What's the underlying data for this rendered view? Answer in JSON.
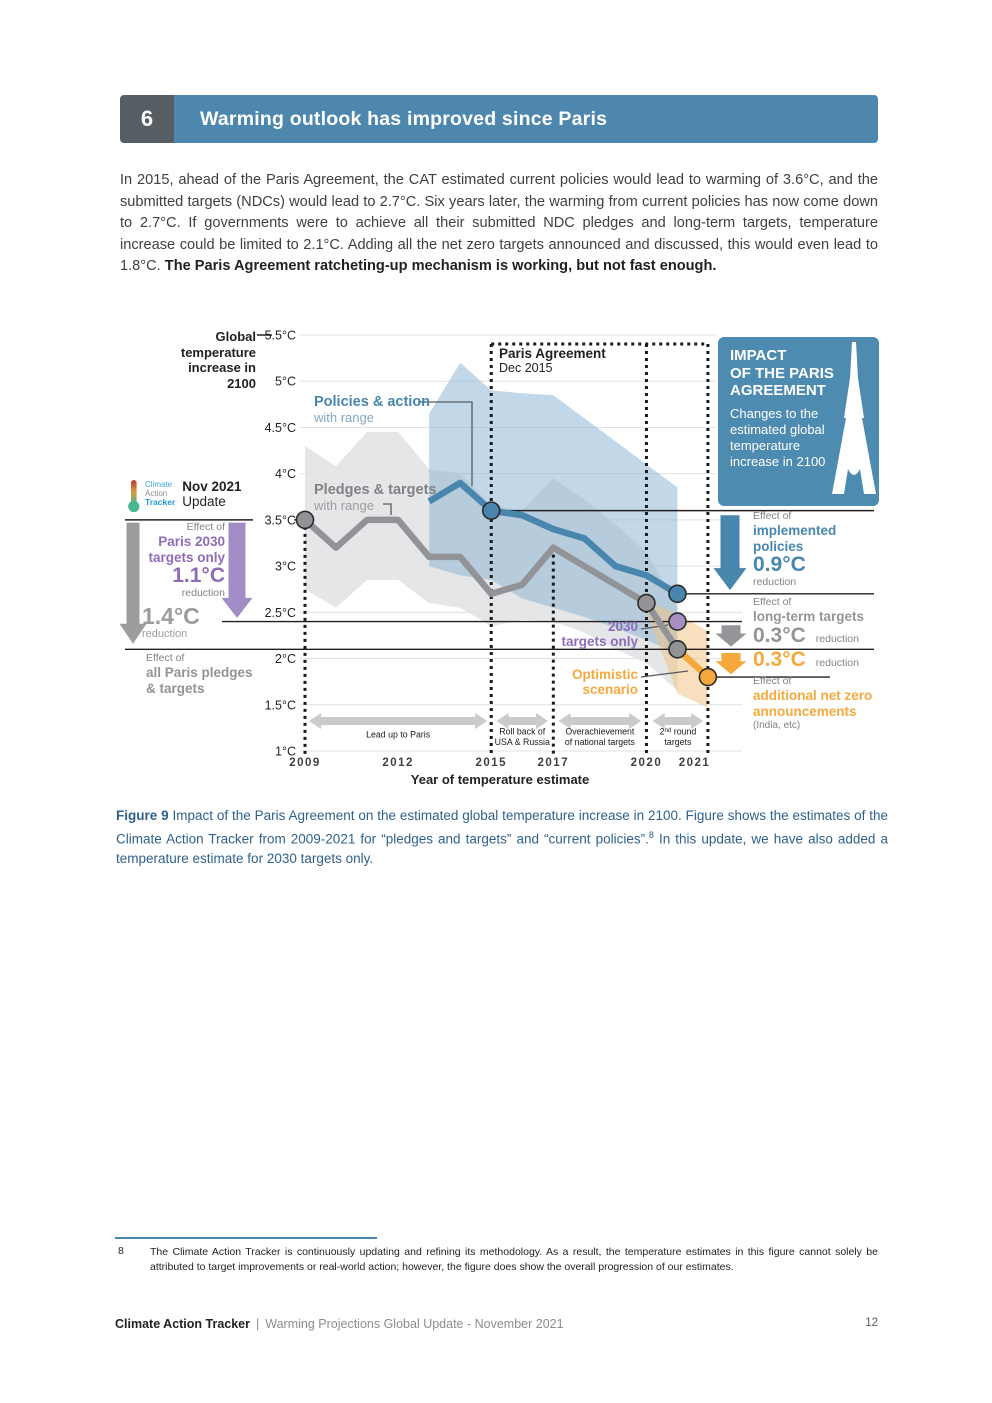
{
  "colors": {
    "banner_blue": "#4e87ae",
    "banner_dark": "#565d63",
    "policies_blue": "#4886ae",
    "pledges_gray": "#919396",
    "purple": "#8d6cb8",
    "orange": "#f5a93d",
    "caption_blue": "#2f618c"
  },
  "header": {
    "number": "6",
    "title": "Warming outlook has improved since Paris"
  },
  "intro": {
    "text": "In 2015, ahead of the Paris Agreement, the CAT estimated current policies would lead to warming of 3.6°C, and the submitted targets (NDCs) would lead to 2.7°C. Six years later, the warming from current policies has now come down to 2.7°C. If governments were to achieve all their submitted NDC pledges and long-term targets, temperature increase could be limited to 2.1°C. Adding all the net zero targets announced and discussed, this would even lead to 1.8°C. ",
    "bold_text": "The Paris Agreement ratcheting-up mechanism is working, but not fast enough."
  },
  "chart": {
    "y_axis_title": "Global\ntemperature\nincrease in\n2100",
    "legend": {
      "policies": {
        "title": "Policies & action",
        "subtitle": "with range"
      },
      "pledges": {
        "title": "Pledges & targets",
        "subtitle": "with range"
      }
    },
    "paris_event": {
      "title": "Paris Agreement",
      "subtitle": "Dec 2015"
    },
    "update_badge": {
      "logo_lines": [
        "Climate",
        "Action",
        "Tracker"
      ],
      "date": "Nov 2021",
      "label": "Update"
    },
    "impact_box": {
      "title": "IMPACT\nOF THE PARIS\nAGREEMENT",
      "body": "Changes to the estimated global temperature increase in 2100"
    },
    "annotations": {
      "paris2030": {
        "prefix": "Effect of",
        "line1": "Paris 2030",
        "line2": "targets only",
        "value": "1.1°C",
        "suffix": "reduction"
      },
      "all_pledges": {
        "value": "1.4°C",
        "value_suffix": "reduction",
        "prefix": "Effect of",
        "line1": "all Paris pledges",
        "line2": "& targets"
      },
      "implemented": {
        "prefix": "Effect of",
        "line1": "implemented",
        "line2": "policies",
        "value": "0.9°C",
        "suffix": "reduction"
      },
      "longterm": {
        "prefix": "Effect of",
        "line1": "long-term targets",
        "value": "0.3°C",
        "suffix": "reduction"
      },
      "netzero": {
        "value": "0.3°C",
        "value_suffix": "reduction",
        "prefix": "Effect of",
        "line1": "additional net zero",
        "line2": "announcements",
        "line3": "(India, etc)"
      },
      "targets2030_label": {
        "line1": "2030",
        "line2": "targets only"
      },
      "optimistic_label": {
        "line1": "Optimistic",
        "line2": "scenario"
      }
    }
  },
  "chart_data": {
    "type": "line",
    "title": "Impact of the Paris Agreement on the estimated global temperature increase in 2100",
    "xlabel": "Year of temperature estimate",
    "ylabel": "Global temperature increase in 2100 (°C)",
    "xlim": [
      2009,
      2022
    ],
    "ylim": [
      1,
      5.5
    ],
    "y_ticks": [
      {
        "v": 5.5,
        "label": "5.5°C"
      },
      {
        "v": 5,
        "label": "5°C"
      },
      {
        "v": 4.5,
        "label": "4.5°C"
      },
      {
        "v": 4,
        "label": "4°C"
      },
      {
        "v": 3.5,
        "label": "3.5°C"
      },
      {
        "v": 3,
        "label": "3°C"
      },
      {
        "v": 2.5,
        "label": "2.5°C"
      },
      {
        "v": 2,
        "label": "2°C"
      },
      {
        "v": 1.5,
        "label": "1.5°C"
      },
      {
        "v": 1,
        "label": "1°C"
      }
    ],
    "x_ticks": [
      {
        "pos": 2009,
        "label": "2009"
      },
      {
        "pos": 2012,
        "label": "2012"
      },
      {
        "pos": 2015,
        "label": "2015"
      },
      {
        "pos": 2017,
        "label": "2017"
      },
      {
        "pos": 2020,
        "label": "2020"
      },
      {
        "pos": 2021.55,
        "label": "2021"
      }
    ],
    "series": [
      {
        "name": "Pledges & targets",
        "color": "#919396",
        "points": [
          [
            2009,
            3.5
          ],
          [
            2010,
            3.2
          ],
          [
            2011,
            3.5
          ],
          [
            2012,
            3.5
          ],
          [
            2013,
            3.1
          ],
          [
            2014,
            3.1
          ],
          [
            2015,
            2.7
          ],
          [
            2016,
            2.8
          ],
          [
            2017,
            3.2
          ],
          [
            2020,
            2.6
          ],
          [
            2021,
            2.1
          ]
        ],
        "markers": [
          [
            2009,
            3.5
          ],
          [
            2020,
            2.6
          ],
          [
            2021,
            2.1
          ]
        ]
      },
      {
        "name": "Policies & action",
        "color": "#4886ae",
        "points": [
          [
            2013,
            3.7
          ],
          [
            2014,
            3.9
          ],
          [
            2015,
            3.6
          ],
          [
            2016,
            3.55
          ],
          [
            2017,
            3.4
          ],
          [
            2018,
            3.3
          ],
          [
            2019,
            3.0
          ],
          [
            2020,
            2.9
          ],
          [
            2021,
            2.7
          ]
        ],
        "markers": [
          [
            2015,
            3.6
          ],
          [
            2021,
            2.7
          ]
        ]
      },
      {
        "name": "2030 targets only",
        "color": "#a78fc4",
        "points": [
          [
            2021,
            2.4
          ]
        ],
        "markers": [
          [
            2021,
            2.4
          ]
        ]
      },
      {
        "name": "Optimistic scenario",
        "color": "#f5a93d",
        "points": [
          [
            2021,
            2.1
          ],
          [
            2021.98,
            1.8
          ]
        ],
        "markers": [
          [
            2021.98,
            1.8
          ]
        ]
      }
    ],
    "bands": [
      {
        "name": "pledges-targets-range",
        "color": "#e2e3e4",
        "opacity": 0.9,
        "upper": [
          [
            2009,
            4.3
          ],
          [
            2010,
            4.08
          ],
          [
            2011,
            4.45
          ],
          [
            2012,
            4.45
          ],
          [
            2013,
            4.05
          ],
          [
            2014,
            4.0
          ],
          [
            2015,
            3.66
          ],
          [
            2016,
            3.6
          ],
          [
            2017,
            3.95
          ],
          [
            2018,
            3.72
          ],
          [
            2019,
            3.45
          ],
          [
            2020,
            3.15
          ],
          [
            2021,
            2.55
          ]
        ],
        "lower": [
          [
            2009,
            2.75
          ],
          [
            2010,
            2.55
          ],
          [
            2011,
            2.85
          ],
          [
            2012,
            2.85
          ],
          [
            2013,
            2.6
          ],
          [
            2014,
            2.55
          ],
          [
            2015,
            2.35
          ],
          [
            2016,
            2.42
          ],
          [
            2017,
            2.4
          ],
          [
            2018,
            2.28
          ],
          [
            2019,
            2.1
          ],
          [
            2020,
            1.95
          ],
          [
            2021,
            1.65
          ]
        ]
      },
      {
        "name": "policies-action-range",
        "color": "#8fb6d3",
        "opacity": 0.55,
        "upper": [
          [
            2013,
            4.65
          ],
          [
            2014,
            5.2
          ],
          [
            2015,
            4.9
          ],
          [
            2016,
            4.87
          ],
          [
            2017,
            4.85
          ],
          [
            2018,
            4.6
          ],
          [
            2019,
            4.35
          ],
          [
            2020,
            4.1
          ],
          [
            2021,
            3.85
          ]
        ],
        "lower": [
          [
            2013,
            3.0
          ],
          [
            2014,
            2.9
          ],
          [
            2015,
            2.85
          ],
          [
            2016,
            2.65
          ],
          [
            2017,
            2.55
          ],
          [
            2018,
            2.45
          ],
          [
            2019,
            2.33
          ],
          [
            2020,
            2.2
          ],
          [
            2021,
            2.05
          ]
        ]
      },
      {
        "name": "optimistic-range",
        "color": "#f2c27d",
        "opacity": 0.5,
        "polygon": [
          [
            2020,
            2.62
          ],
          [
            2021,
            2.48
          ],
          [
            2021.97,
            2.3
          ],
          [
            2021.97,
            1.47
          ],
          [
            2021,
            1.62
          ],
          [
            2020,
            2.5
          ]
        ]
      }
    ],
    "reference_lines": [
      3.5,
      3.6,
      2.7,
      2.4,
      2.1,
      1.8
    ],
    "event_lines": [
      {
        "year": 2009,
        "from_value": 3.5
      },
      {
        "year": 2015,
        "from_top": true
      },
      {
        "year": 2017,
        "from_value": 3.2
      },
      {
        "year": 2020,
        "from_top": true
      },
      {
        "year": 2021.98,
        "from_top": true
      }
    ],
    "periods": [
      {
        "label": "Lead up to Paris",
        "from": 2009.13,
        "to": 2014.87
      },
      {
        "label": "Roll back of\nUSA & Russia",
        "from": 2015.17,
        "to": 2016.83
      },
      {
        "label": "Overachievement\nof national targets",
        "from": 2017.17,
        "to": 2019.83
      },
      {
        "label": "2nd round\ntargets",
        "from": 2020.2,
        "to": 2021.83
      }
    ],
    "reductions": [
      {
        "name": "Paris 2030 targets only",
        "value_c": 1.1
      },
      {
        "name": "All Paris pledges & targets",
        "value_c": 1.4
      },
      {
        "name": "Implemented policies",
        "value_c": 0.9
      },
      {
        "name": "Long-term targets",
        "value_c": 0.3
      },
      {
        "name": "Additional net zero announcements (India, etc)",
        "value_c": 0.3
      }
    ]
  },
  "caption": {
    "label": "Figure 9",
    "text1": " Impact of the Paris Agreement on the estimated global temperature increase in 2100. Figure shows the estimates of the Climate Action Tracker from 2009-2021 for “pledges and targets” and “current policies”.",
    "sup": "8",
    "text2": " In this update, we have also added a temperature estimate for 2030 targets only."
  },
  "footnote": {
    "number": "8",
    "text": "The Climate Action Tracker is continuously updating and refining its methodology. As a result, the temperature estimates in this figure cannot solely be attributed to target improvements or real-world action; however, the figure does show the overall progression of our estimates."
  },
  "footer": {
    "brand": "Climate Action Tracker",
    "separator": "|",
    "title": "Warming Projections Global Update - November 2021",
    "page": "12"
  }
}
